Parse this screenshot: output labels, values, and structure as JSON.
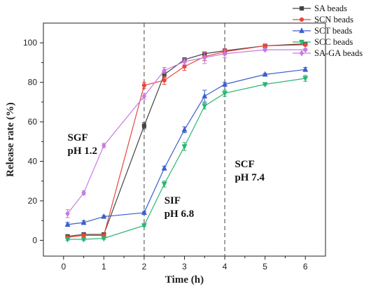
{
  "chart_data": {
    "type": "line",
    "xlabel": "Time (h)",
    "ylabel": "Release rate (%)",
    "xlim": [
      -0.5,
      6.5
    ],
    "ylim": [
      -8,
      110
    ],
    "xticks": [
      0,
      1,
      2,
      3,
      4,
      5,
      6
    ],
    "yticks": [
      0,
      20,
      40,
      60,
      80,
      100
    ],
    "grid": false,
    "legend_position": "top-right",
    "vlines": [
      2,
      4
    ],
    "series": [
      {
        "name": "SA beads",
        "color": "#444444",
        "marker": "square",
        "x": [
          0.1,
          0.5,
          1,
          2,
          2.5,
          3,
          3.5,
          4,
          5,
          6
        ],
        "y": [
          2,
          3,
          3,
          58,
          84,
          91.5,
          94.5,
          96,
          98.5,
          99.5
        ],
        "err": [
          0.5,
          0.5,
          0.5,
          1.5,
          1.5,
          1,
          1,
          1,
          0.5,
          0.5
        ]
      },
      {
        "name": "SCN beads",
        "color": "#e8463c",
        "marker": "circle",
        "x": [
          0.1,
          0.5,
          1,
          2,
          2.5,
          3,
          3.5,
          4,
          5,
          6
        ],
        "y": [
          1.5,
          2.5,
          2.5,
          78.5,
          81,
          88,
          93,
          95.5,
          98.5,
          99
        ],
        "err": [
          0.5,
          0.5,
          0.5,
          1.5,
          2,
          2,
          2,
          1.5,
          0.5,
          0.5
        ]
      },
      {
        "name": "SCT beads",
        "color": "#3a5fcd",
        "marker": "triangle-up",
        "x": [
          0.1,
          0.5,
          1,
          2,
          2.5,
          3,
          3.5,
          4,
          5,
          6
        ],
        "y": [
          8,
          9,
          12,
          14,
          36.5,
          56,
          73,
          79,
          84,
          86.5
        ],
        "err": [
          1,
          1,
          0.5,
          0.5,
          1,
          1.5,
          3,
          1,
          0.5,
          1
        ]
      },
      {
        "name": "SCC beads",
        "color": "#2bb673",
        "marker": "triangle-down",
        "x": [
          0.1,
          0.5,
          1,
          2,
          2.5,
          3,
          3.5,
          4,
          5,
          6
        ],
        "y": [
          0.5,
          0.5,
          1,
          7.5,
          28.5,
          47.5,
          68,
          74.5,
          79,
          82
        ],
        "err": [
          0.5,
          0.5,
          0.5,
          0.5,
          1.5,
          2,
          1.5,
          1.5,
          0.5,
          1.5
        ]
      },
      {
        "name": "SA-GA beads",
        "color": "#c77be0",
        "marker": "diamond",
        "x": [
          0.1,
          0.5,
          1,
          2,
          2.5,
          3,
          3.5,
          4,
          5,
          6
        ],
        "y": [
          13.5,
          24,
          48,
          73,
          86,
          90.5,
          92.5,
          94.5,
          96.5,
          96.5
        ],
        "err": [
          2,
          1,
          1,
          1.5,
          1.5,
          1.5,
          3,
          2,
          0.5,
          0.5
        ]
      }
    ],
    "annotations": [
      {
        "lines": [
          "SGF",
          "pH 1.2"
        ],
        "x": 0.1,
        "y": 50.5
      },
      {
        "lines": [
          "SIF",
          "pH 6.8"
        ],
        "x": 2.5,
        "y": 18.5
      },
      {
        "lines": [
          "SCF",
          "pH 7.4"
        ],
        "x": 4.25,
        "y": 37
      }
    ]
  }
}
